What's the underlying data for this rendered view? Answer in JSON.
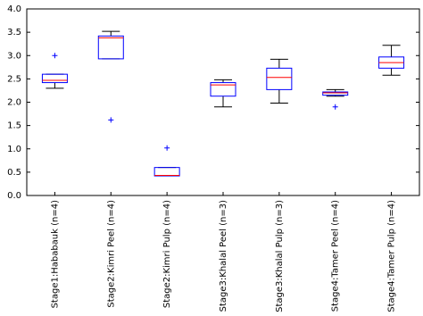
{
  "chart_data": {
    "type": "box",
    "categories": [
      "Stage1:Hababauk (n=4)",
      "Stage2:Kimri Peel (n=4)",
      "Stage2:Kimri Pulp (n=4)",
      "Stage3:Khalal Peel (n=3)",
      "Stage3:Khalal Pulp (n=3)",
      "Stage4:Tamer Peel (n=4)",
      "Stage4:Tamer Pulp (n=4)"
    ],
    "low": [
      2.3,
      2.93,
      0.42,
      1.9,
      1.98,
      2.13,
      2.58
    ],
    "q1": [
      2.42,
      2.93,
      0.42,
      2.13,
      2.27,
      2.15,
      2.73
    ],
    "median": [
      2.47,
      3.38,
      0.43,
      2.37,
      2.53,
      2.2,
      2.85
    ],
    "q3": [
      2.6,
      3.42,
      0.6,
      2.42,
      2.73,
      2.22,
      2.97
    ],
    "high": [
      2.6,
      3.52,
      0.6,
      2.48,
      2.92,
      2.27,
      3.22
    ],
    "outliers": [
      [
        3.0
      ],
      [
        1.62
      ],
      [
        1.02
      ],
      [],
      [],
      [
        1.9
      ],
      []
    ],
    "box_color": "#0000ff",
    "median_color": "#ff0000",
    "whisker_color": "#000000",
    "ylim": [
      0,
      4
    ],
    "yticks": [
      {
        "value": 0,
        "label": "0.0"
      },
      {
        "value": 0.5,
        "label": "0.5"
      },
      {
        "value": 1,
        "label": "1.0"
      },
      {
        "value": 1.5,
        "label": "1.5"
      },
      {
        "value": 2,
        "label": "2.0"
      },
      {
        "value": 2.5,
        "label": "2.5"
      },
      {
        "value": 3,
        "label": "3.0"
      },
      {
        "value": 3.5,
        "label": "3.5"
      },
      {
        "value": 4,
        "label": "4.0"
      }
    ]
  }
}
